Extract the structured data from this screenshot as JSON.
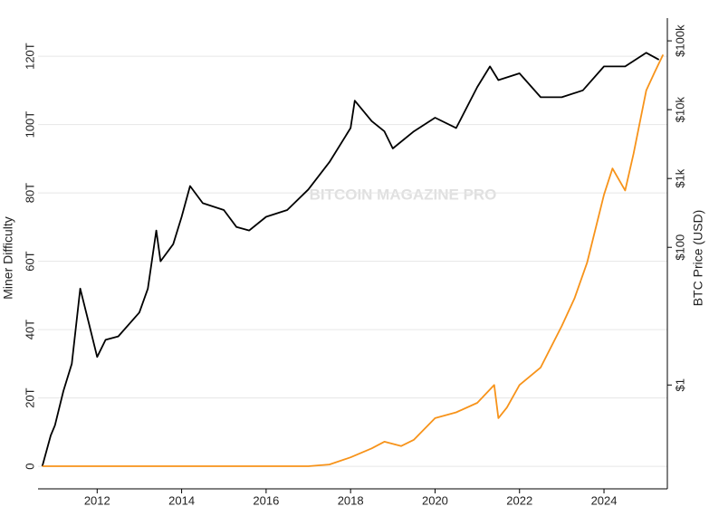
{
  "chart_data": {
    "type": "line",
    "watermark": "BITCOIN MAGAZINE PRO",
    "ylabel": "Miner Difficulty",
    "y2label": "BTC Price (USD)",
    "xlim": [
      2010.6,
      2025.5
    ],
    "xticks": [
      2012,
      2014,
      2016,
      2018,
      2020,
      2022,
      2024
    ],
    "ylim": [
      -6.6,
      128.5
    ],
    "yticks": [
      0,
      {
        "value": 20,
        "label": "20T"
      },
      {
        "value": 40,
        "label": "40T"
      },
      {
        "value": 60,
        "label": "60T"
      },
      {
        "value": 80,
        "label": "80T"
      },
      {
        "value": 100,
        "label": "100T"
      },
      {
        "value": 120,
        "label": "120T"
      }
    ],
    "y2lim": [
      0.031,
      158000
    ],
    "y2log": true,
    "y2ticks": [
      {
        "value": 1,
        "label": "$1"
      },
      {
        "value": 100,
        "label": "$100"
      },
      {
        "value": 1000,
        "label": "$1k"
      },
      {
        "value": 10000,
        "label": "$10k"
      },
      {
        "value": 100000,
        "label": "$100k"
      }
    ],
    "grid": true,
    "series": [
      {
        "name": "Miner Difficulty",
        "color": "#000000",
        "x": [
          2010.7,
          2010.9,
          2011.0,
          2011.2,
          2011.4,
          2011.6,
          2011.8,
          2012.0,
          2012.2,
          2012.5,
          2013.0,
          2013.2,
          2013.4,
          2013.5,
          2013.8,
          2014.0,
          2014.2,
          2014.5,
          2015.0,
          2015.3,
          2015.6,
          2016.0,
          2016.5,
          2017.0,
          2017.5,
          2018.0,
          2018.1,
          2018.5,
          2018.8,
          2019.0,
          2019.5,
          2020.0,
          2020.5,
          2021.0,
          2021.3,
          2021.5,
          2022.0,
          2022.5,
          2023.0,
          2023.5,
          2024.0,
          2024.5,
          2025.0,
          2025.3
        ],
        "values": [
          0,
          9,
          12,
          22,
          30,
          52,
          42,
          32,
          37,
          38,
          45,
          52,
          69,
          60,
          65,
          73,
          82,
          77,
          75,
          70,
          69,
          73,
          75,
          81,
          89,
          99,
          107,
          101,
          98,
          93,
          98,
          102,
          99,
          111,
          117,
          113,
          115,
          108,
          108,
          110,
          117,
          117,
          121,
          119
        ]
      },
      {
        "name": "BTC Price",
        "color": "#f7931a",
        "axis": "y2",
        "x": [
          2010.7,
          2017.0,
          2017.5,
          2018.0,
          2018.5,
          2018.8,
          2019.2,
          2019.5,
          2020.0,
          2020.5,
          2021.0,
          2021.4,
          2021.5,
          2021.7,
          2022.0,
          2022.5,
          2023.0,
          2023.3,
          2023.6,
          2024.0,
          2024.2,
          2024.5,
          2024.7,
          2025.0,
          2025.2,
          2025.4
        ],
        "values": [
          0.066,
          0.066,
          0.07,
          0.089,
          0.12,
          0.15,
          0.13,
          0.16,
          0.33,
          0.4,
          0.55,
          1,
          0.33,
          0.47,
          1,
          1.8,
          7.2,
          18,
          60,
          580,
          1400,
          670,
          2300,
          19000,
          35000,
          63000
        ]
      }
    ]
  }
}
